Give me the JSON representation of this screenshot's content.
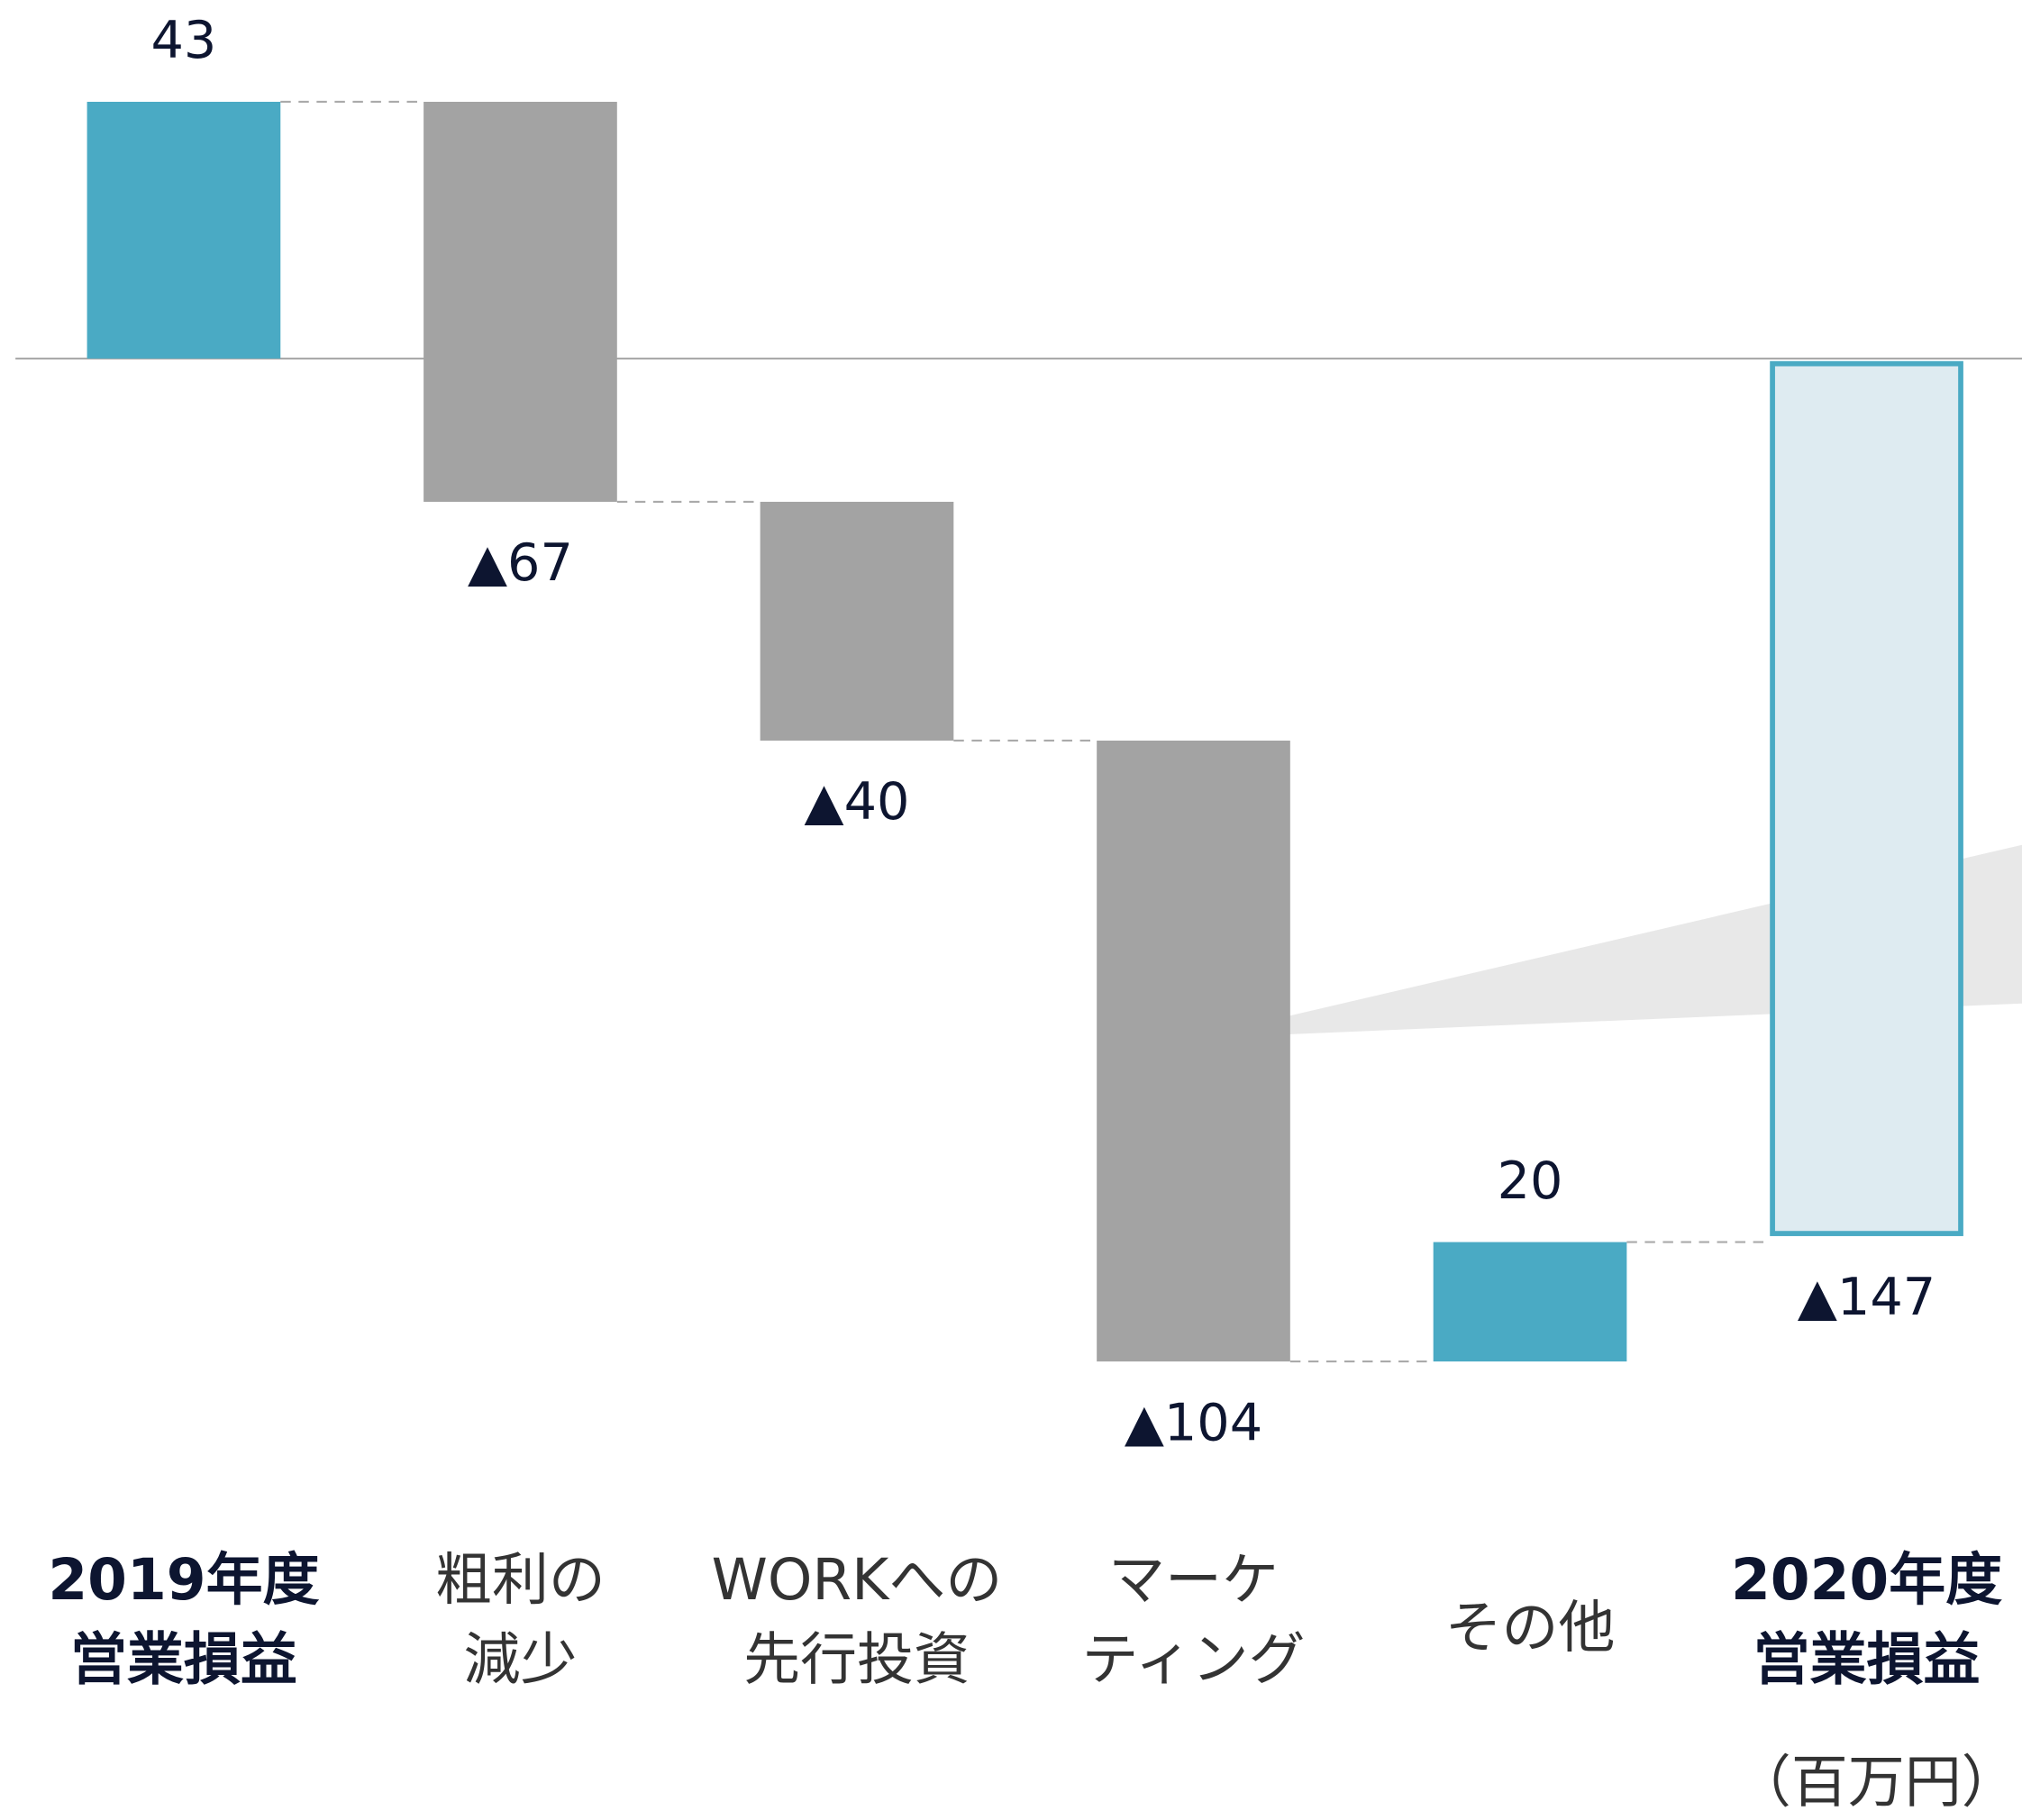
{
  "chart_data": {
    "type": "waterfall",
    "categories": [
      [
        "2019年度",
        "営業損益"
      ],
      [
        "粗利の",
        "減少"
      ],
      [
        "WORKへの",
        "先行投資"
      ],
      [
        "マーケ",
        "ティング"
      ],
      [
        "その他"
      ],
      [
        "2020年度",
        "営業損益"
      ]
    ],
    "measure": [
      "absolute",
      "relative",
      "relative",
      "relative",
      "relative",
      "total"
    ],
    "values": [
      43,
      -67,
      -40,
      -104,
      20,
      -147
    ],
    "value_labels": [
      "43",
      "▲67",
      "▲40",
      "▲104",
      "20",
      "▲147"
    ],
    "colors": [
      "#4aaac4",
      "#a3a3a3",
      "#a3a3a3",
      "#a3a3a3",
      "#4aaac4",
      "#deebf1"
    ],
    "total_edge_color": "#4aaac4",
    "unit": "（百万円）",
    "ylim": [
      -190,
      60
    ]
  }
}
